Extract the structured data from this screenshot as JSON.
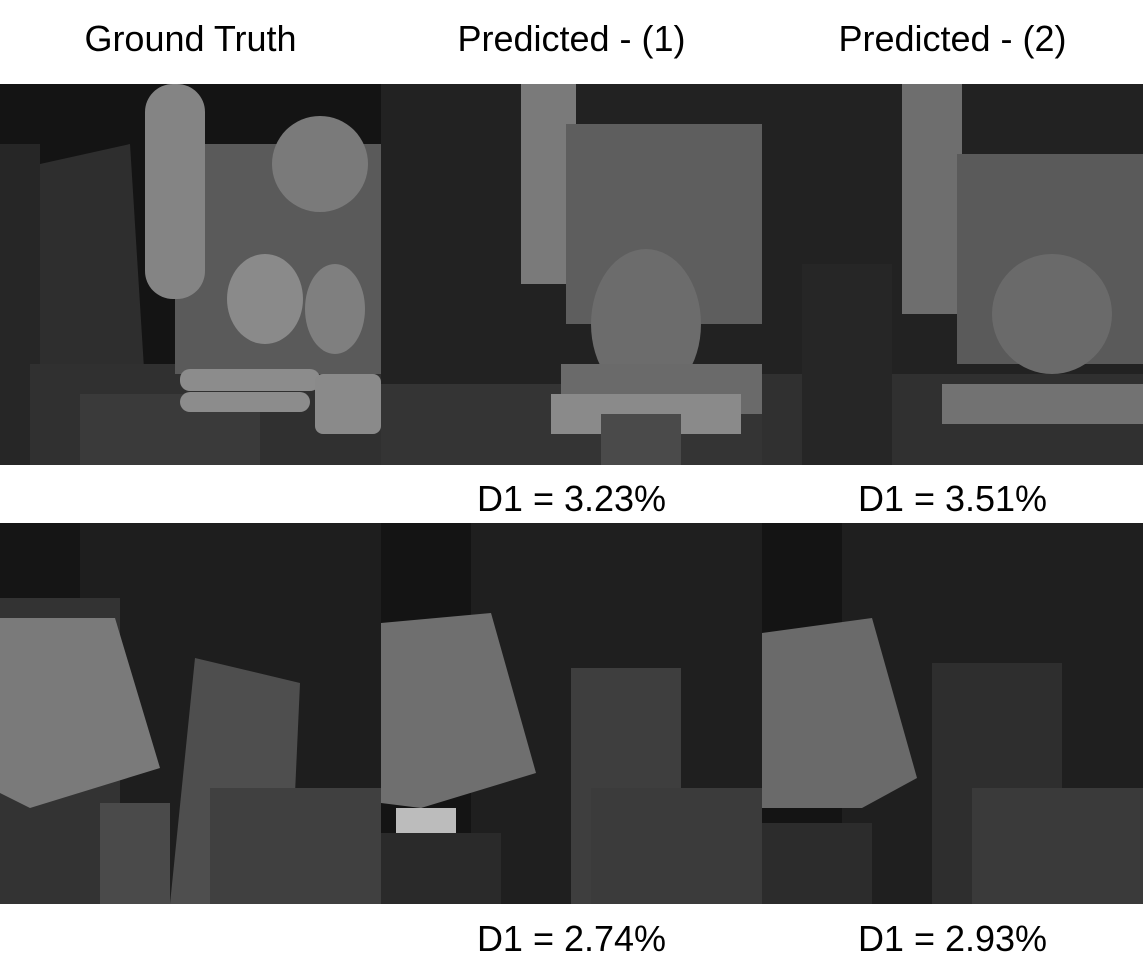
{
  "columns": [
    {
      "title": "Ground Truth"
    },
    {
      "title": "Predicted - (1)"
    },
    {
      "title": "Predicted - (2)"
    }
  ],
  "rows": [
    {
      "d1_pred1": "D1 = 3.23%",
      "d1_pred2": "D1 = 3.51%"
    },
    {
      "d1_pred1": "D1 = 2.74%",
      "d1_pred2": "D1 = 2.93%"
    }
  ]
}
